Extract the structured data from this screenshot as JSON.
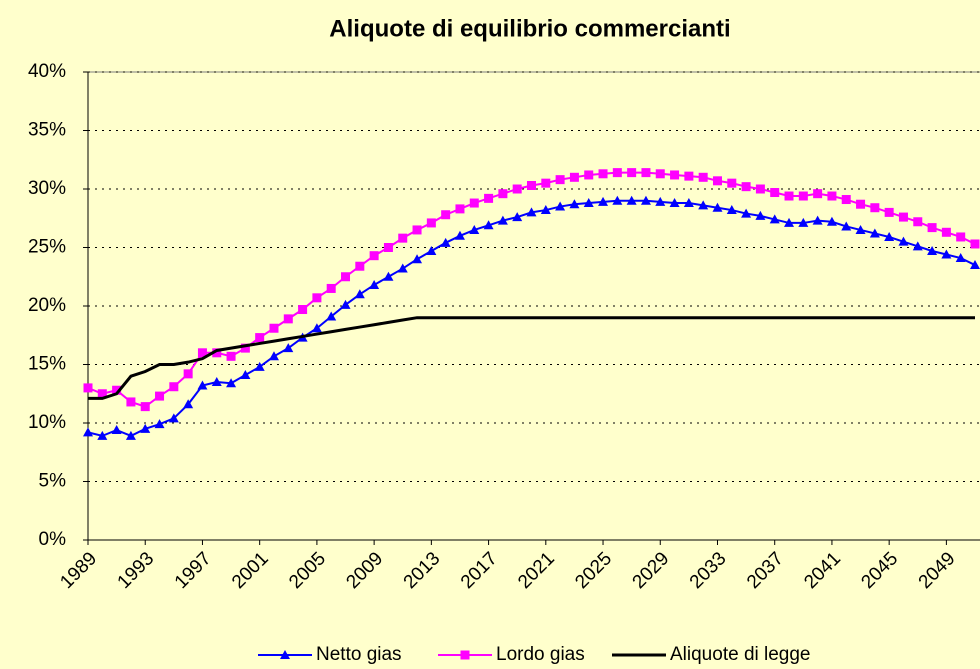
{
  "chart_data": {
    "type": "line",
    "title": "Aliquote di equilibrio commercianti",
    "x": [
      1989,
      1990,
      1991,
      1992,
      1993,
      1994,
      1995,
      1996,
      1997,
      1998,
      1999,
      2000,
      2001,
      2002,
      2003,
      2004,
      2005,
      2006,
      2007,
      2008,
      2009,
      2010,
      2011,
      2012,
      2013,
      2014,
      2015,
      2016,
      2017,
      2018,
      2019,
      2020,
      2021,
      2022,
      2023,
      2024,
      2025,
      2026,
      2027,
      2028,
      2029,
      2030,
      2031,
      2032,
      2033,
      2034,
      2035,
      2036,
      2037,
      2038,
      2039,
      2040,
      2041,
      2042,
      2043,
      2044,
      2045,
      2046,
      2047,
      2048,
      2049,
      2050,
      2051
    ],
    "xlim": [
      1989,
      2051
    ],
    "xticks": [
      1989,
      1993,
      1997,
      2001,
      2005,
      2009,
      2013,
      2017,
      2021,
      2025,
      2029,
      2033,
      2037,
      2041,
      2045,
      2049
    ],
    "ylim": [
      0,
      40
    ],
    "yticks": [
      {
        "value": 0,
        "label": "0%"
      },
      {
        "value": 5,
        "label": "5%"
      },
      {
        "value": 10,
        "label": "10%"
      },
      {
        "value": 15,
        "label": "15%"
      },
      {
        "value": 20,
        "label": "20%"
      },
      {
        "value": 25,
        "label": "25%"
      },
      {
        "value": 30,
        "label": "30%"
      },
      {
        "value": 35,
        "label": "35%"
      },
      {
        "value": 40,
        "label": "40%"
      }
    ],
    "grid": true,
    "legend": "bottom",
    "series": [
      {
        "name": "Netto gias",
        "color": "#0000ff",
        "marker": "triangle",
        "values": [
          9.2,
          8.9,
          9.4,
          8.9,
          9.5,
          9.9,
          10.4,
          11.6,
          13.2,
          13.5,
          13.4,
          14.1,
          14.8,
          15.7,
          16.4,
          17.3,
          18.1,
          19.1,
          20.1,
          21.0,
          21.8,
          22.5,
          23.2,
          24.0,
          24.7,
          25.4,
          26.0,
          26.5,
          26.9,
          27.3,
          27.6,
          28.0,
          28.2,
          28.5,
          28.7,
          28.8,
          28.9,
          29.0,
          29.0,
          29.0,
          28.9,
          28.8,
          28.8,
          28.6,
          28.4,
          28.2,
          27.9,
          27.7,
          27.4,
          27.1,
          27.1,
          27.3,
          27.2,
          26.8,
          26.5,
          26.2,
          25.9,
          25.5,
          25.1,
          24.7,
          24.4,
          24.1,
          23.5
        ]
      },
      {
        "name": "Lordo gias",
        "color": "#ff00ff",
        "marker": "square",
        "values": [
          13.0,
          12.5,
          12.8,
          11.8,
          11.4,
          12.3,
          13.1,
          14.2,
          16.0,
          16.0,
          15.7,
          16.4,
          17.3,
          18.1,
          18.9,
          19.7,
          20.7,
          21.5,
          22.5,
          23.4,
          24.3,
          25.0,
          25.8,
          26.5,
          27.1,
          27.8,
          28.3,
          28.8,
          29.2,
          29.6,
          30.0,
          30.3,
          30.5,
          30.8,
          31.0,
          31.2,
          31.3,
          31.4,
          31.4,
          31.4,
          31.3,
          31.2,
          31.1,
          31.0,
          30.7,
          30.5,
          30.2,
          30.0,
          29.7,
          29.4,
          29.4,
          29.6,
          29.4,
          29.1,
          28.7,
          28.4,
          28.0,
          27.6,
          27.2,
          26.7,
          26.3,
          25.9,
          25.3
        ]
      },
      {
        "name": "Aliquote di legge",
        "color": "#000000",
        "marker": "none",
        "values": [
          12.1,
          12.1,
          12.5,
          14.0,
          14.4,
          15.0,
          15.0,
          15.2,
          15.5,
          16.2,
          16.4,
          16.6,
          16.8,
          17.0,
          17.2,
          17.4,
          17.6,
          17.8,
          18.0,
          18.2,
          18.4,
          18.6,
          18.8,
          19.0,
          19.0,
          19.0,
          19.0,
          19.0,
          19.0,
          19.0,
          19.0,
          19.0,
          19.0,
          19.0,
          19.0,
          19.0,
          19.0,
          19.0,
          19.0,
          19.0,
          19.0,
          19.0,
          19.0,
          19.0,
          19.0,
          19.0,
          19.0,
          19.0,
          19.0,
          19.0,
          19.0,
          19.0,
          19.0,
          19.0,
          19.0,
          19.0,
          19.0,
          19.0,
          19.0,
          19.0,
          19.0,
          19.0,
          19.0
        ]
      }
    ]
  }
}
